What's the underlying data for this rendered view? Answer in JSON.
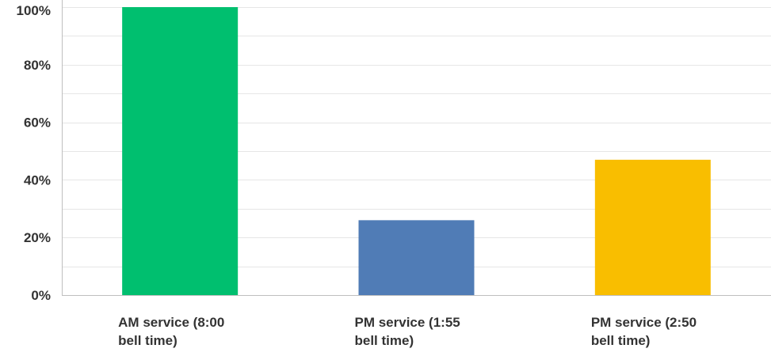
{
  "chart_data": {
    "type": "bar",
    "categories": [
      [
        "AM service (8:00",
        "bell time)"
      ],
      [
        "PM service (1:55",
        "bell time)"
      ],
      [
        "PM service (2:50",
        "bell time)"
      ]
    ],
    "values": [
      100,
      26,
      47
    ],
    "colors": [
      "#00bf6f",
      "#507cb6",
      "#f9be00"
    ],
    "y_ticks": [
      "0%",
      "20%",
      "40%",
      "60%",
      "80%",
      "100%"
    ],
    "ylim": [
      0,
      100
    ],
    "y_unit": "%",
    "grid": true,
    "legend": "none"
  }
}
